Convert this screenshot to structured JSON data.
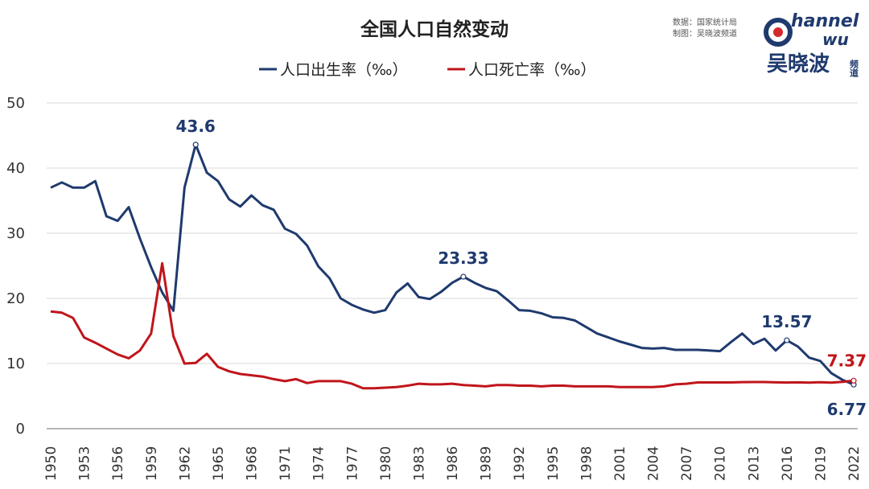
{
  "chart_data": {
    "type": "line",
    "title": "全国人口自然变动",
    "source_lines": [
      "数据：国家统计局",
      "制图：吴晓波频道"
    ],
    "x": [
      1950,
      1951,
      1952,
      1953,
      1954,
      1955,
      1956,
      1957,
      1958,
      1959,
      1960,
      1961,
      1962,
      1963,
      1964,
      1965,
      1966,
      1967,
      1968,
      1969,
      1970,
      1971,
      1972,
      1973,
      1974,
      1975,
      1976,
      1977,
      1978,
      1979,
      1980,
      1981,
      1982,
      1983,
      1984,
      1985,
      1986,
      1987,
      1988,
      1989,
      1990,
      1991,
      1992,
      1993,
      1994,
      1995,
      1996,
      1997,
      1998,
      1999,
      2000,
      2001,
      2002,
      2003,
      2004,
      2005,
      2006,
      2007,
      2008,
      2009,
      2010,
      2011,
      2012,
      2013,
      2014,
      2015,
      2016,
      2017,
      2018,
      2019,
      2020,
      2021,
      2022
    ],
    "x_tick_labels": [
      "1950",
      "1953",
      "1956",
      "1959",
      "1962",
      "1965",
      "1968",
      "1971",
      "1974",
      "1977",
      "1980",
      "1983",
      "1986",
      "1989",
      "1992",
      "1995",
      "1998",
      "2001",
      "2004",
      "2007",
      "2010",
      "2013",
      "2016",
      "2019",
      "2022"
    ],
    "ylim": [
      0,
      50
    ],
    "y_ticks": [
      "0",
      "10",
      "20",
      "30",
      "40",
      "50"
    ],
    "grid": true,
    "legend_position": "top-center",
    "series": [
      {
        "name": "人口出生率（‰）",
        "color": "#1f3a6e",
        "values": [
          37.0,
          37.8,
          37.0,
          37.0,
          38.0,
          32.6,
          31.9,
          34.0,
          29.2,
          24.8,
          20.9,
          18.1,
          37.0,
          43.6,
          39.3,
          38.0,
          35.2,
          34.1,
          35.8,
          34.3,
          33.6,
          30.7,
          29.9,
          28.1,
          24.9,
          23.1,
          20.0,
          19.0,
          18.3,
          17.8,
          18.2,
          20.9,
          22.3,
          20.2,
          19.9,
          21.0,
          22.4,
          23.33,
          22.4,
          21.6,
          21.1,
          19.7,
          18.2,
          18.1,
          17.7,
          17.1,
          17.0,
          16.6,
          15.6,
          14.6,
          14.0,
          13.4,
          12.9,
          12.4,
          12.3,
          12.4,
          12.1,
          12.1,
          12.1,
          12.0,
          11.9,
          13.3,
          14.6,
          13.0,
          13.8,
          12.0,
          13.57,
          12.6,
          10.9,
          10.4,
          8.5,
          7.5,
          6.77
        ],
        "labels": [
          {
            "x": 1963,
            "text": "43.6"
          },
          {
            "x": 1987,
            "text": "23.33"
          },
          {
            "x": 2016,
            "text": "13.57"
          },
          {
            "x": 2022,
            "text": "6.77"
          }
        ]
      },
      {
        "name": "人口死亡率（‰）",
        "color": "#c0151b",
        "values": [
          18.0,
          17.8,
          17.0,
          14.0,
          13.2,
          12.3,
          11.4,
          10.8,
          12.0,
          14.6,
          25.4,
          14.2,
          10.0,
          10.1,
          11.5,
          9.5,
          8.8,
          8.4,
          8.2,
          8.0,
          7.6,
          7.3,
          7.6,
          7.0,
          7.3,
          7.3,
          7.3,
          6.9,
          6.2,
          6.2,
          6.3,
          6.4,
          6.6,
          6.9,
          6.8,
          6.8,
          6.9,
          6.7,
          6.6,
          6.5,
          6.7,
          6.7,
          6.6,
          6.6,
          6.5,
          6.6,
          6.6,
          6.5,
          6.5,
          6.5,
          6.5,
          6.4,
          6.4,
          6.4,
          6.4,
          6.5,
          6.8,
          6.9,
          7.1,
          7.1,
          7.1,
          7.1,
          7.15,
          7.16,
          7.16,
          7.11,
          7.09,
          7.11,
          7.08,
          7.14,
          7.07,
          7.18,
          7.37
        ],
        "labels": [
          {
            "x": 2022,
            "text": "7.37"
          }
        ]
      }
    ]
  },
  "logo": {
    "line1": "hannel",
    "line2": "wu",
    "name": "吴晓波",
    "side": "频道",
    "brand_color": "#1f3a6e",
    "accent_color": "#d6282c"
  }
}
